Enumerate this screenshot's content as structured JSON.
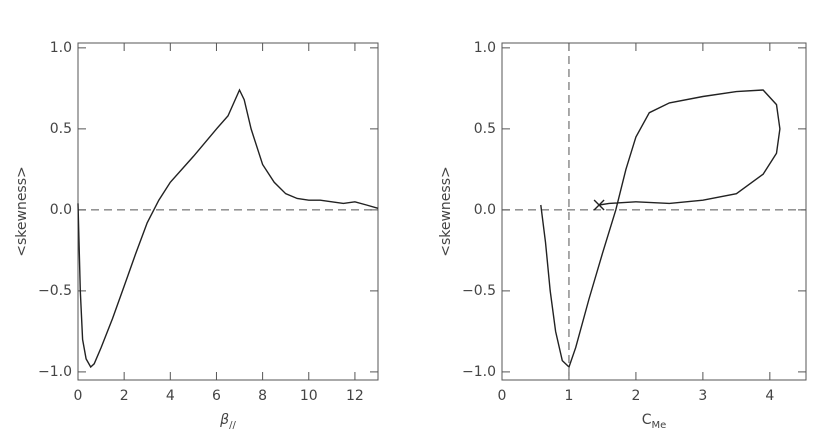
{
  "chart_data": [
    {
      "type": "line",
      "y_label": "<skewness>",
      "x_label": "β",
      "x_label_subscript": "//",
      "xlim": [
        0,
        13
      ],
      "ylim": [
        -1.05,
        1.03
      ],
      "xticks": [
        0,
        2,
        4,
        6,
        8,
        10,
        12
      ],
      "yticks": [
        {
          "value": -1.0,
          "label": "−1.0"
        },
        {
          "value": -0.5,
          "label": "−0.5"
        },
        {
          "value": 0.0,
          "label": "0.0"
        },
        {
          "value": 0.5,
          "label": "0.5"
        },
        {
          "value": 1.0,
          "label": "1.0"
        }
      ],
      "hline": 0,
      "series": [
        {
          "color": "#222222",
          "x": [
            0,
            0.1,
            0.2,
            0.35,
            0.55,
            0.7,
            1,
            1.5,
            2,
            2.5,
            3,
            3.5,
            4,
            5,
            6,
            6.5,
            7,
            7.2,
            7.5,
            8,
            8.5,
            9,
            9.5,
            10,
            10.5,
            11,
            11.5,
            12,
            12.5,
            13
          ],
          "values": [
            0.04,
            -0.5,
            -0.8,
            -0.92,
            -0.97,
            -0.95,
            -0.85,
            -0.67,
            -0.47,
            -0.27,
            -0.08,
            0.06,
            0.17,
            0.33,
            0.5,
            0.58,
            0.74,
            0.68,
            0.5,
            0.28,
            0.17,
            0.1,
            0.07,
            0.06,
            0.06,
            0.05,
            0.04,
            0.05,
            0.03,
            0.01
          ]
        }
      ]
    },
    {
      "type": "line",
      "y_label": "<skewness>",
      "x_label": "C",
      "x_label_subscript": "Me",
      "xlim": [
        0,
        4.54
      ],
      "ylim": [
        -1.05,
        1.03
      ],
      "xticks": [
        0,
        1,
        2,
        3,
        4
      ],
      "yticks": [
        {
          "value": -1.0,
          "label": "−1.0"
        },
        {
          "value": -0.5,
          "label": "−0.5"
        },
        {
          "value": 0.0,
          "label": "0.0"
        },
        {
          "value": 0.5,
          "label": "0.5"
        },
        {
          "value": 1.0,
          "label": "1.0"
        }
      ],
      "hline": 0,
      "vline": 1,
      "series": [
        {
          "color": "#222222",
          "end_marker": "x",
          "x": [
            0.58,
            0.65,
            0.72,
            0.8,
            0.9,
            1,
            1.1,
            1.3,
            1.5,
            1.7,
            1.85,
            2,
            2.2,
            2.5,
            3,
            3.5,
            3.9,
            4.1,
            4.15,
            4.1,
            3.9,
            3.5,
            3,
            2.5,
            2,
            1.6,
            1.45
          ],
          "values": [
            0.03,
            -0.2,
            -0.5,
            -0.75,
            -0.93,
            -0.97,
            -0.85,
            -0.55,
            -0.27,
            0.0,
            0.25,
            0.45,
            0.6,
            0.66,
            0.7,
            0.73,
            0.74,
            0.65,
            0.5,
            0.35,
            0.22,
            0.1,
            0.06,
            0.04,
            0.05,
            0.04,
            0.03
          ]
        }
      ]
    }
  ]
}
